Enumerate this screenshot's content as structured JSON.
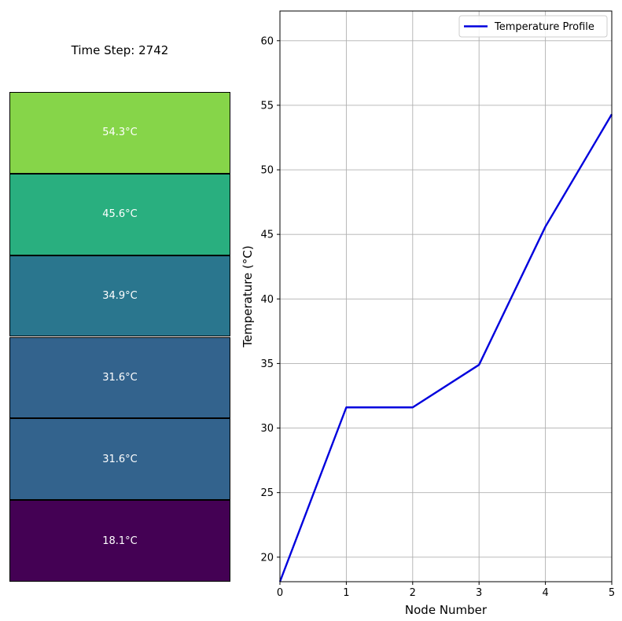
{
  "left_panel": {
    "title": "Time Step: 2742",
    "blocks": [
      {
        "label": "54.3°C",
        "color": "#86d549"
      },
      {
        "label": "45.6°C",
        "color": "#29af7f"
      },
      {
        "label": "34.9°C",
        "color": "#2a768e"
      },
      {
        "label": "31.6°C",
        "color": "#33638d"
      },
      {
        "label": "31.6°C",
        "color": "#33638d"
      },
      {
        "label": "18.1°C",
        "color": "#440154"
      }
    ]
  },
  "chart_data": {
    "type": "line",
    "x": [
      0,
      1,
      2,
      3,
      4,
      5
    ],
    "series": [
      {
        "name": "Temperature Profile",
        "values": [
          18.1,
          31.6,
          31.6,
          34.9,
          45.6,
          54.3
        ],
        "color": "#0000dd"
      }
    ],
    "xlabel": "Node Number",
    "ylabel": "Temperature (°C)",
    "xlim": [
      0,
      5
    ],
    "ylim": [
      18.1,
      62.3
    ],
    "xticks": [
      0,
      1,
      2,
      3,
      4,
      5
    ],
    "yticks": [
      20,
      25,
      30,
      35,
      40,
      45,
      50,
      55,
      60
    ],
    "grid": true,
    "legend": "top-right"
  }
}
